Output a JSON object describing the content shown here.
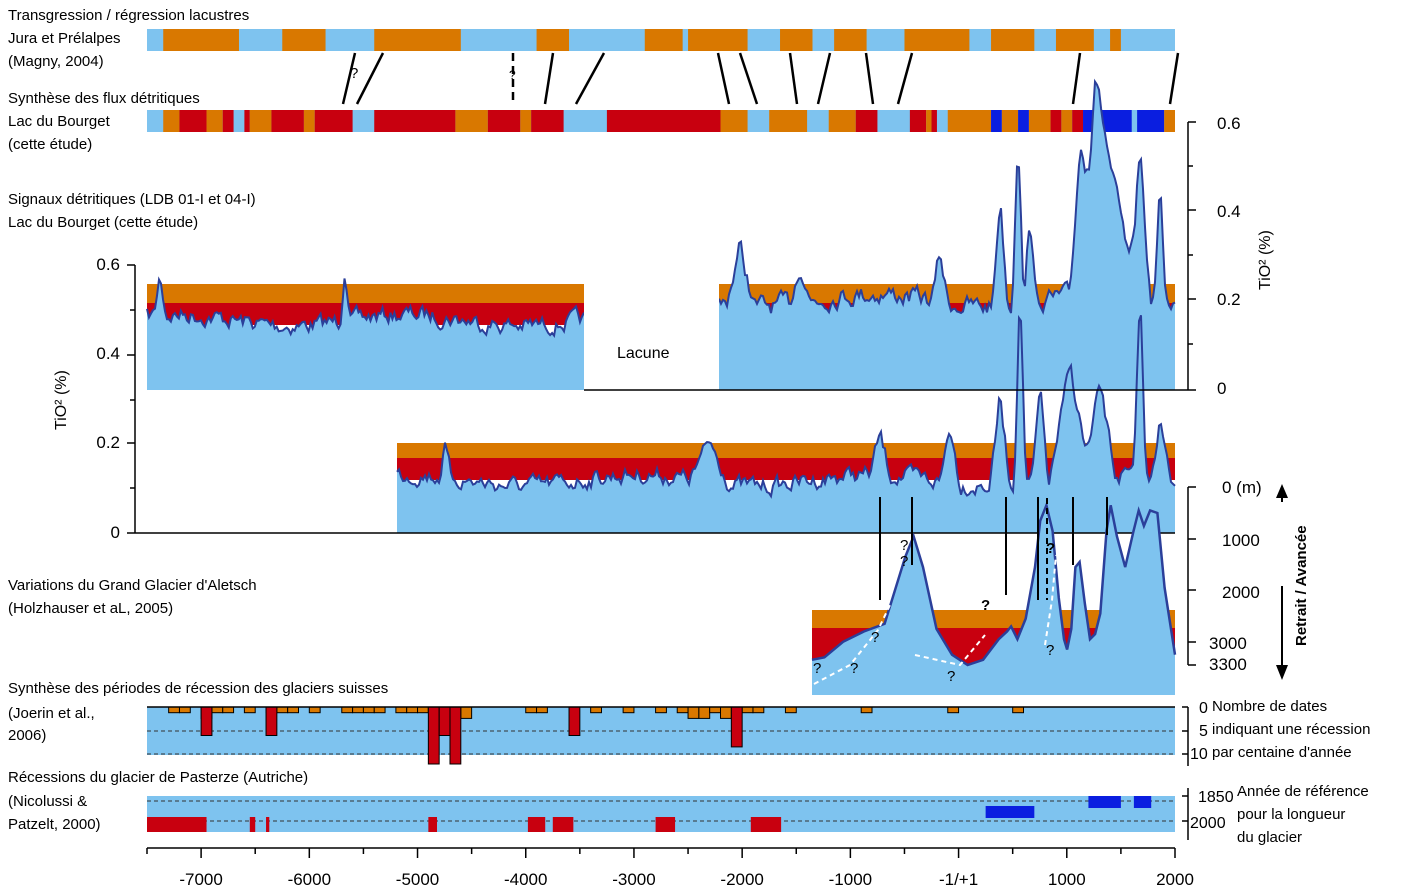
{
  "colors": {
    "lake_blue": "#7ec3ef",
    "orange": "#d97800",
    "red": "#c8000f",
    "dark_blue": "#0a1ee0",
    "signal_line": "#2b3f9a"
  },
  "sections": {
    "transgression": {
      "title": "Transgression / régression lacustres",
      "line2": "Jura et Prélalpes",
      "source": "(Magny, 2004)"
    },
    "synthese": {
      "title": "Synthèse des flux détritiques",
      "line2": "Lac du Bourget",
      "source": "(cette étude)"
    },
    "signaux": {
      "title": "Signaux détritiques (LDB 01-I et 04-I)",
      "line2": "Lac du Bourget (cette étude)",
      "gap_label": "Lacune"
    },
    "aletsch": {
      "title": "Variations du Grand Glacier d'Aletsch",
      "source": "(Holzhauser et aL, 2005)"
    },
    "joerin": {
      "title": "Synthèse des périodes de récession des glaciers suisses",
      "source_1": "(Joerin et al.,",
      "source_2": "2006)",
      "right_1": "Nombre de dates",
      "right_2": "indiquant une récession",
      "right_3": "par centaine d'année"
    },
    "pasterze": {
      "title": "Récessions du glacier de Pasterze (Autriche)",
      "source_1": "(Nicolussi &",
      "source_2": "Patzelt, 2000)",
      "right_1": "Année de référence",
      "right_2": "pour la longueur",
      "right_3": "du glacier"
    }
  },
  "chart_data": {
    "type": "area",
    "xlabel": "",
    "x_ticks": [
      "-7000",
      "-6000",
      "-5000",
      "-4000",
      "-3000",
      "-2000",
      "-1000",
      "-1/+1",
      "1000",
      "2000"
    ],
    "xlim": [
      -7500,
      2000
    ],
    "tio2_left": {
      "ylabel": "TiO² (%)",
      "ylim": [
        0,
        0.6
      ],
      "ticks": [
        "0.6",
        "0.4",
        "0.2",
        "0"
      ]
    },
    "tio2_right": {
      "ylabel": "TiO² (%)",
      "ylim": [
        0,
        0.6
      ],
      "ticks": [
        "0.6",
        "0.4",
        "0.2",
        "0"
      ]
    },
    "aletsch": {
      "ticks": [
        "0 (m)",
        "1000",
        "2000",
        "3000",
        "3300"
      ],
      "axis_label": "Retrait / Avancée",
      "question_marks": [
        "?",
        "?",
        "?",
        "?",
        "?",
        "?",
        "?",
        "?",
        "?"
      ]
    },
    "joerin": {
      "ticks": [
        "0",
        "5",
        "10"
      ]
    },
    "pasterze": {
      "ticks": [
        "1850",
        "2000"
      ]
    },
    "magny_question_marks": [
      "?",
      "?"
    ],
    "magny_bands": [
      [
        -7350,
        -6650,
        "o"
      ],
      [
        -6250,
        -5850,
        "o"
      ],
      [
        -5400,
        -4600,
        "o"
      ],
      [
        -3900,
        -3600,
        "o"
      ],
      [
        -2900,
        -2550,
        "o"
      ],
      [
        -2500,
        -1950,
        "o"
      ],
      [
        -1650,
        -1350,
        "o"
      ],
      [
        -1150,
        -850,
        "o"
      ],
      [
        -500,
        100,
        "o"
      ],
      [
        300,
        700,
        "o"
      ],
      [
        900,
        1250,
        "o"
      ],
      [
        1400,
        1500,
        "o"
      ]
    ],
    "bourget_bands": [
      [
        -7350,
        -7200,
        "o"
      ],
      [
        -7200,
        -6950,
        "r"
      ],
      [
        -6950,
        -6800,
        "o"
      ],
      [
        -6800,
        -6700,
        "r"
      ],
      [
        -6600,
        -6550,
        "r"
      ],
      [
        -6550,
        -6350,
        "o"
      ],
      [
        -6350,
        -6050,
        "r"
      ],
      [
        -6050,
        -5950,
        "o"
      ],
      [
        -5950,
        -5600,
        "r"
      ],
      [
        -5400,
        -4650,
        "r"
      ],
      [
        -4650,
        -4350,
        "o"
      ],
      [
        -4350,
        -4050,
        "r"
      ],
      [
        -4050,
        -3950,
        "o"
      ],
      [
        -3950,
        -3650,
        "r"
      ],
      [
        -3250,
        -2200,
        "r"
      ],
      [
        -2200,
        -1950,
        "o"
      ],
      [
        -1750,
        -1400,
        "o"
      ],
      [
        -1200,
        -950,
        "o"
      ],
      [
        -950,
        -750,
        "r"
      ],
      [
        -450,
        -300,
        "r"
      ],
      [
        -300,
        -250,
        "o"
      ],
      [
        -250,
        -200,
        "r"
      ],
      [
        -100,
        300,
        "o"
      ],
      [
        300,
        400,
        "b"
      ],
      [
        400,
        550,
        "o"
      ],
      [
        550,
        650,
        "b"
      ],
      [
        650,
        850,
        "o"
      ],
      [
        850,
        950,
        "r"
      ],
      [
        950,
        1050,
        "o"
      ],
      [
        1050,
        1150,
        "r"
      ],
      [
        1150,
        1250,
        "b"
      ],
      [
        1300,
        1600,
        "b"
      ],
      [
        1650,
        1900,
        "b"
      ],
      [
        1900,
        2000,
        "o"
      ]
    ],
    "pasterze_red": [
      [
        -7500,
        -6950
      ],
      [
        -6550,
        -6500
      ],
      [
        -6400,
        -6370
      ],
      [
        -4900,
        -4820
      ],
      [
        -3980,
        -3820
      ],
      [
        -3750,
        -3560
      ],
      [
        -2800,
        -2620
      ],
      [
        -1920,
        -1640
      ]
    ],
    "pasterze_blue": [
      [
        250,
        700
      ],
      [
        1200,
        1500
      ],
      [
        1620,
        1780
      ]
    ],
    "joerin_orange": [
      [
        -7250,
        1
      ],
      [
        -7150,
        1
      ],
      [
        -6950,
        2
      ],
      [
        -6850,
        1
      ],
      [
        -6750,
        1
      ],
      [
        -6550,
        1
      ],
      [
        -6350,
        1
      ],
      [
        -6250,
        1
      ],
      [
        -6150,
        1
      ],
      [
        -5950,
        1
      ],
      [
        -5650,
        1
      ],
      [
        -5550,
        1
      ],
      [
        -5450,
        1
      ],
      [
        -5350,
        1
      ],
      [
        -5150,
        1
      ],
      [
        -5050,
        1
      ],
      [
        -4950,
        1
      ],
      [
        -4850,
        1
      ],
      [
        -4550,
        2
      ],
      [
        -3950,
        1
      ],
      [
        -3850,
        1
      ],
      [
        -3350,
        1
      ],
      [
        -3050,
        1
      ],
      [
        -2750,
        1
      ],
      [
        -2550,
        1
      ],
      [
        -2450,
        2
      ],
      [
        -2350,
        2
      ],
      [
        -2250,
        1
      ],
      [
        -2150,
        2
      ],
      [
        -1950,
        1
      ],
      [
        -1850,
        1
      ],
      [
        -1550,
        1
      ],
      [
        -850,
        1
      ],
      [
        -50,
        1
      ],
      [
        550,
        1
      ]
    ],
    "joerin_red": [
      [
        -6950,
        5
      ],
      [
        -6350,
        5
      ],
      [
        -4850,
        10
      ],
      [
        -4650,
        10
      ],
      [
        -4750,
        5
      ],
      [
        -3550,
        5
      ],
      [
        -2050,
        7
      ]
    ],
    "aletsch_profile": [
      [
        -1500,
        3200
      ],
      [
        -1380,
        3150
      ],
      [
        -1200,
        2850
      ],
      [
        -1000,
        2650
      ],
      [
        -800,
        2500
      ],
      [
        -600,
        1200
      ],
      [
        -520,
        800
      ],
      [
        -430,
        1400
      ],
      [
        -300,
        2600
      ],
      [
        -150,
        3100
      ],
      [
        0,
        3300
      ],
      [
        150,
        3200
      ],
      [
        300,
        2800
      ],
      [
        380,
        2650
      ],
      [
        420,
        2550
      ],
      [
        480,
        2800
      ],
      [
        560,
        2400
      ],
      [
        650,
        1400
      ],
      [
        700,
        500
      ],
      [
        760,
        200
      ],
      [
        820,
        700
      ],
      [
        880,
        2000
      ],
      [
        930,
        2800
      ],
      [
        960,
        3000
      ],
      [
        1000,
        2600
      ],
      [
        1040,
        1400
      ],
      [
        1080,
        1300
      ],
      [
        1130,
        2100
      ],
      [
        1180,
        2800
      ],
      [
        1230,
        2700
      ],
      [
        1280,
        2300
      ],
      [
        1340,
        700
      ],
      [
        1380,
        200
      ],
      [
        1440,
        800
      ],
      [
        1520,
        1400
      ],
      [
        1600,
        700
      ],
      [
        1650,
        300
      ],
      [
        1700,
        600
      ],
      [
        1760,
        300
      ],
      [
        1830,
        350
      ],
      [
        1900,
        1800
      ],
      [
        2000,
        3100
      ]
    ]
  }
}
